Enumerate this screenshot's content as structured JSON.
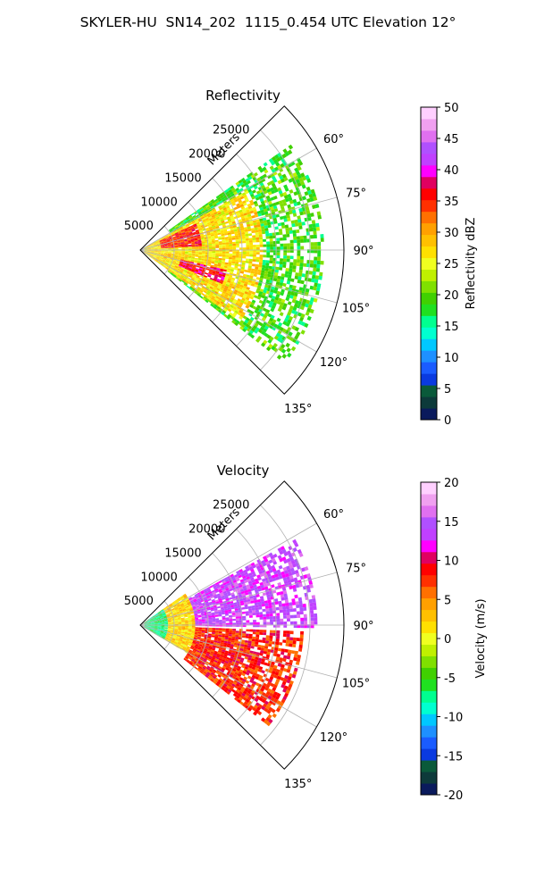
{
  "figure_title": "SKYLER-HU  SN14_202  1115_0.454 UTC Elevation 12°",
  "chart_data": [
    {
      "type": "heatmap",
      "title": "Reflectivity",
      "projection": "polar-sector",
      "range_axis_label": "Meters",
      "range_ticks": [
        5000,
        10000,
        15000,
        20000,
        25000
      ],
      "range_tick_labels": [
        "5000",
        "10000",
        "15000",
        "20000",
        "25000"
      ],
      "azimuth_ticks": [
        60,
        75,
        90,
        105,
        120,
        135
      ],
      "azimuth_tick_labels": [
        "60°",
        "75°",
        "90°",
        "105°",
        "120°",
        "135°"
      ],
      "azimuth_range": [
        45,
        135
      ],
      "range_max": 30000,
      "grid": true,
      "colorbar": {
        "label": "Reflectivity dBZ",
        "min": 0,
        "max": 50,
        "ticks": [
          0,
          5,
          10,
          15,
          20,
          25,
          30,
          35,
          40,
          45,
          50
        ],
        "colors": [
          "#0a1a5c",
          "#0d3a3a",
          "#0a5a3a",
          "#0a3ae0",
          "#1a5cff",
          "#1e90ff",
          "#00c8ff",
          "#00ffd0",
          "#00ff90",
          "#20e020",
          "#40d000",
          "#80e000",
          "#c0f000",
          "#f0ff20",
          "#ffe000",
          "#ffc000",
          "#ffa000",
          "#ff7000",
          "#ff3000",
          "#ff0000",
          "#e00060",
          "#ff00ff",
          "#c040ff",
          "#b050ff",
          "#e070f0",
          "#f0a0f0",
          "#ffd0ff"
        ]
      },
      "features": [
        {
          "name": "high-reflectivity-north",
          "az_range": [
            64,
            86
          ],
          "r_range": [
            3000,
            9000
          ],
          "value": 35
        },
        {
          "name": "high-reflectivity-south",
          "az_range": [
            102,
            112
          ],
          "r_range": [
            6000,
            13000
          ],
          "value": 37
        },
        {
          "name": "moderate-core",
          "az_range": [
            60,
            125
          ],
          "r_range": [
            0,
            18000
          ],
          "value": 27
        },
        {
          "name": "light-precip",
          "az_range": [
            55,
            128
          ],
          "r_range": [
            5000,
            27000
          ],
          "value": 19
        },
        {
          "name": "low-reflectivity-edge",
          "az_range": [
            108,
            115
          ],
          "r_range": [
            3000,
            6000
          ],
          "value": 13
        }
      ]
    },
    {
      "type": "heatmap",
      "title": "Velocity",
      "projection": "polar-sector",
      "range_axis_label": "Meters",
      "range_ticks": [
        5000,
        10000,
        15000,
        20000,
        25000
      ],
      "range_tick_labels": [
        "5000",
        "10000",
        "15000",
        "20000",
        "25000"
      ],
      "azimuth_ticks": [
        60,
        75,
        90,
        105,
        120,
        135
      ],
      "azimuth_tick_labels": [
        "60°",
        "75°",
        "90°",
        "105°",
        "120°",
        "135°"
      ],
      "azimuth_range": [
        45,
        135
      ],
      "range_max": 30000,
      "grid": true,
      "colorbar": {
        "label": "Velocity (m/s)",
        "min": -20,
        "max": 20,
        "ticks": [
          -20,
          -15,
          -10,
          -5,
          0,
          5,
          10,
          15,
          20
        ],
        "colors": [
          "#0a1a5c",
          "#0d3a3a",
          "#0a5a3a",
          "#0a3ae0",
          "#1a5cff",
          "#1e90ff",
          "#00c8ff",
          "#00ffd0",
          "#00ff90",
          "#20e020",
          "#40d000",
          "#80e000",
          "#c0f000",
          "#f0ff20",
          "#ffe000",
          "#ffc000",
          "#ffa000",
          "#ff7000",
          "#ff3000",
          "#ff0000",
          "#e00060",
          "#ff00ff",
          "#c040ff",
          "#b050ff",
          "#e070f0",
          "#f0a0f0",
          "#ffd0ff"
        ]
      },
      "features": [
        {
          "name": "near-radar-inbound",
          "az_range": [
            55,
            120
          ],
          "r_range": [
            0,
            4000
          ],
          "value": -7
        },
        {
          "name": "near-field-yellow",
          "az_range": [
            55,
            120
          ],
          "r_range": [
            4000,
            8000
          ],
          "value": 2
        },
        {
          "name": "outbound-north",
          "az_range": [
            60,
            90
          ],
          "r_range": [
            8000,
            26000
          ],
          "value": 14
        },
        {
          "name": "outbound-south",
          "az_range": [
            92,
            128
          ],
          "r_range": [
            8000,
            24000
          ],
          "value": 8
        }
      ]
    }
  ]
}
